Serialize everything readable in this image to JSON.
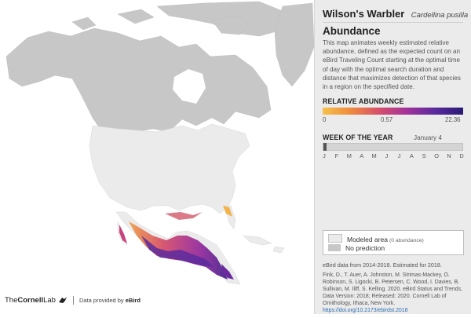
{
  "species": {
    "common_name": "Wilson's Warbler",
    "scientific_name": "Cardellina pusilla"
  },
  "panel": {
    "heading": "Abundance",
    "description": "This map animates weekly estimated relative abundance, defined as the expected count on an eBird Traveling Count starting at the optimal time of day with the optimal search duration and distance that maximizes detection of that species in a region on the specified date."
  },
  "relative_abundance": {
    "label": "RELATIVE ABUNDANCE",
    "ticks": [
      "0",
      "0.57",
      "22.36"
    ],
    "colors": [
      "#f5c24a",
      "#ef8a3c",
      "#d64f6b",
      "#a3329b",
      "#5a2a9e",
      "#2a1a73"
    ]
  },
  "week": {
    "label": "WEEK OF THE YEAR",
    "date": "January 4",
    "months": [
      "J",
      "F",
      "M",
      "A",
      "M",
      "J",
      "J",
      "A",
      "S",
      "O",
      "N",
      "D"
    ]
  },
  "key": {
    "modeled_label": "Modeled area",
    "modeled_note": "(0 abundance)",
    "no_prediction_label": "No prediction",
    "modeled_color": "#ebebeb",
    "no_prediction_color": "#c7c7c7"
  },
  "source": "eBird data from 2014-2018. Estimated for 2018.",
  "citation": "Fink, D., T. Auer, A. Johnston, M. Strimas-Mackey, O. Robinson, S. Ligocki, B. Petersen, C. Wood, I. Davies, B. Sullivan, M. Iliff, S. Kelling. 2020. eBird Status and Trends, Data Version: 2018; Released: 2020. Cornell Lab of Ornithology, Ithaca, New York.",
  "doi": "https://doi.org/10.2173/ebirdst.2018",
  "footer": {
    "logo_prefix": "The",
    "logo_name": "Cornell",
    "logo_suffix": "Lab",
    "data_by": "Data provided by",
    "data_by_brand": "eBird"
  }
}
